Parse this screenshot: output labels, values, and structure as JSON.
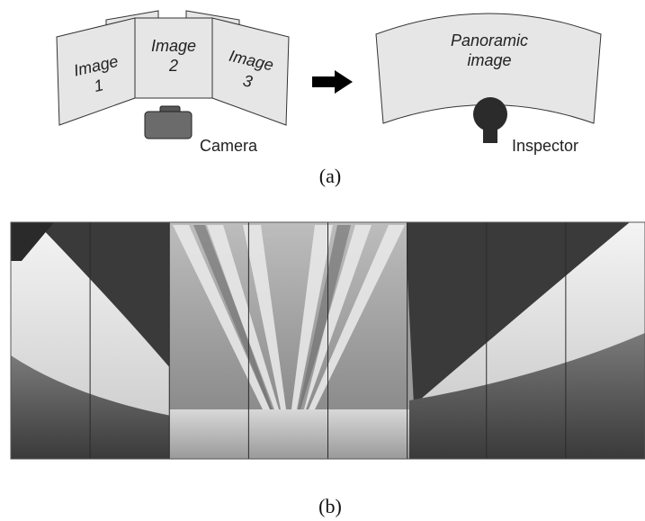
{
  "diagram_a": {
    "images": [
      {
        "label_line1": "Image",
        "label_line2": "1"
      },
      {
        "label_line1": "Image",
        "label_line2": "2"
      },
      {
        "label_line1": "Image",
        "label_line2": "3"
      }
    ],
    "camera_label": "Camera",
    "panorama_line1": "Panoramic",
    "panorama_line2": "image",
    "inspector_label": "Inspector",
    "caption": "(a)"
  },
  "photo_b": {
    "strip_count": 8,
    "caption": "(b)"
  },
  "colors": {
    "panel_fill": "#e6e6e6",
    "panel_stroke": "#333333",
    "camera_fill": "#6b6b6b",
    "inspector_fill": "#2b2b2b",
    "arrow": "#000000"
  }
}
